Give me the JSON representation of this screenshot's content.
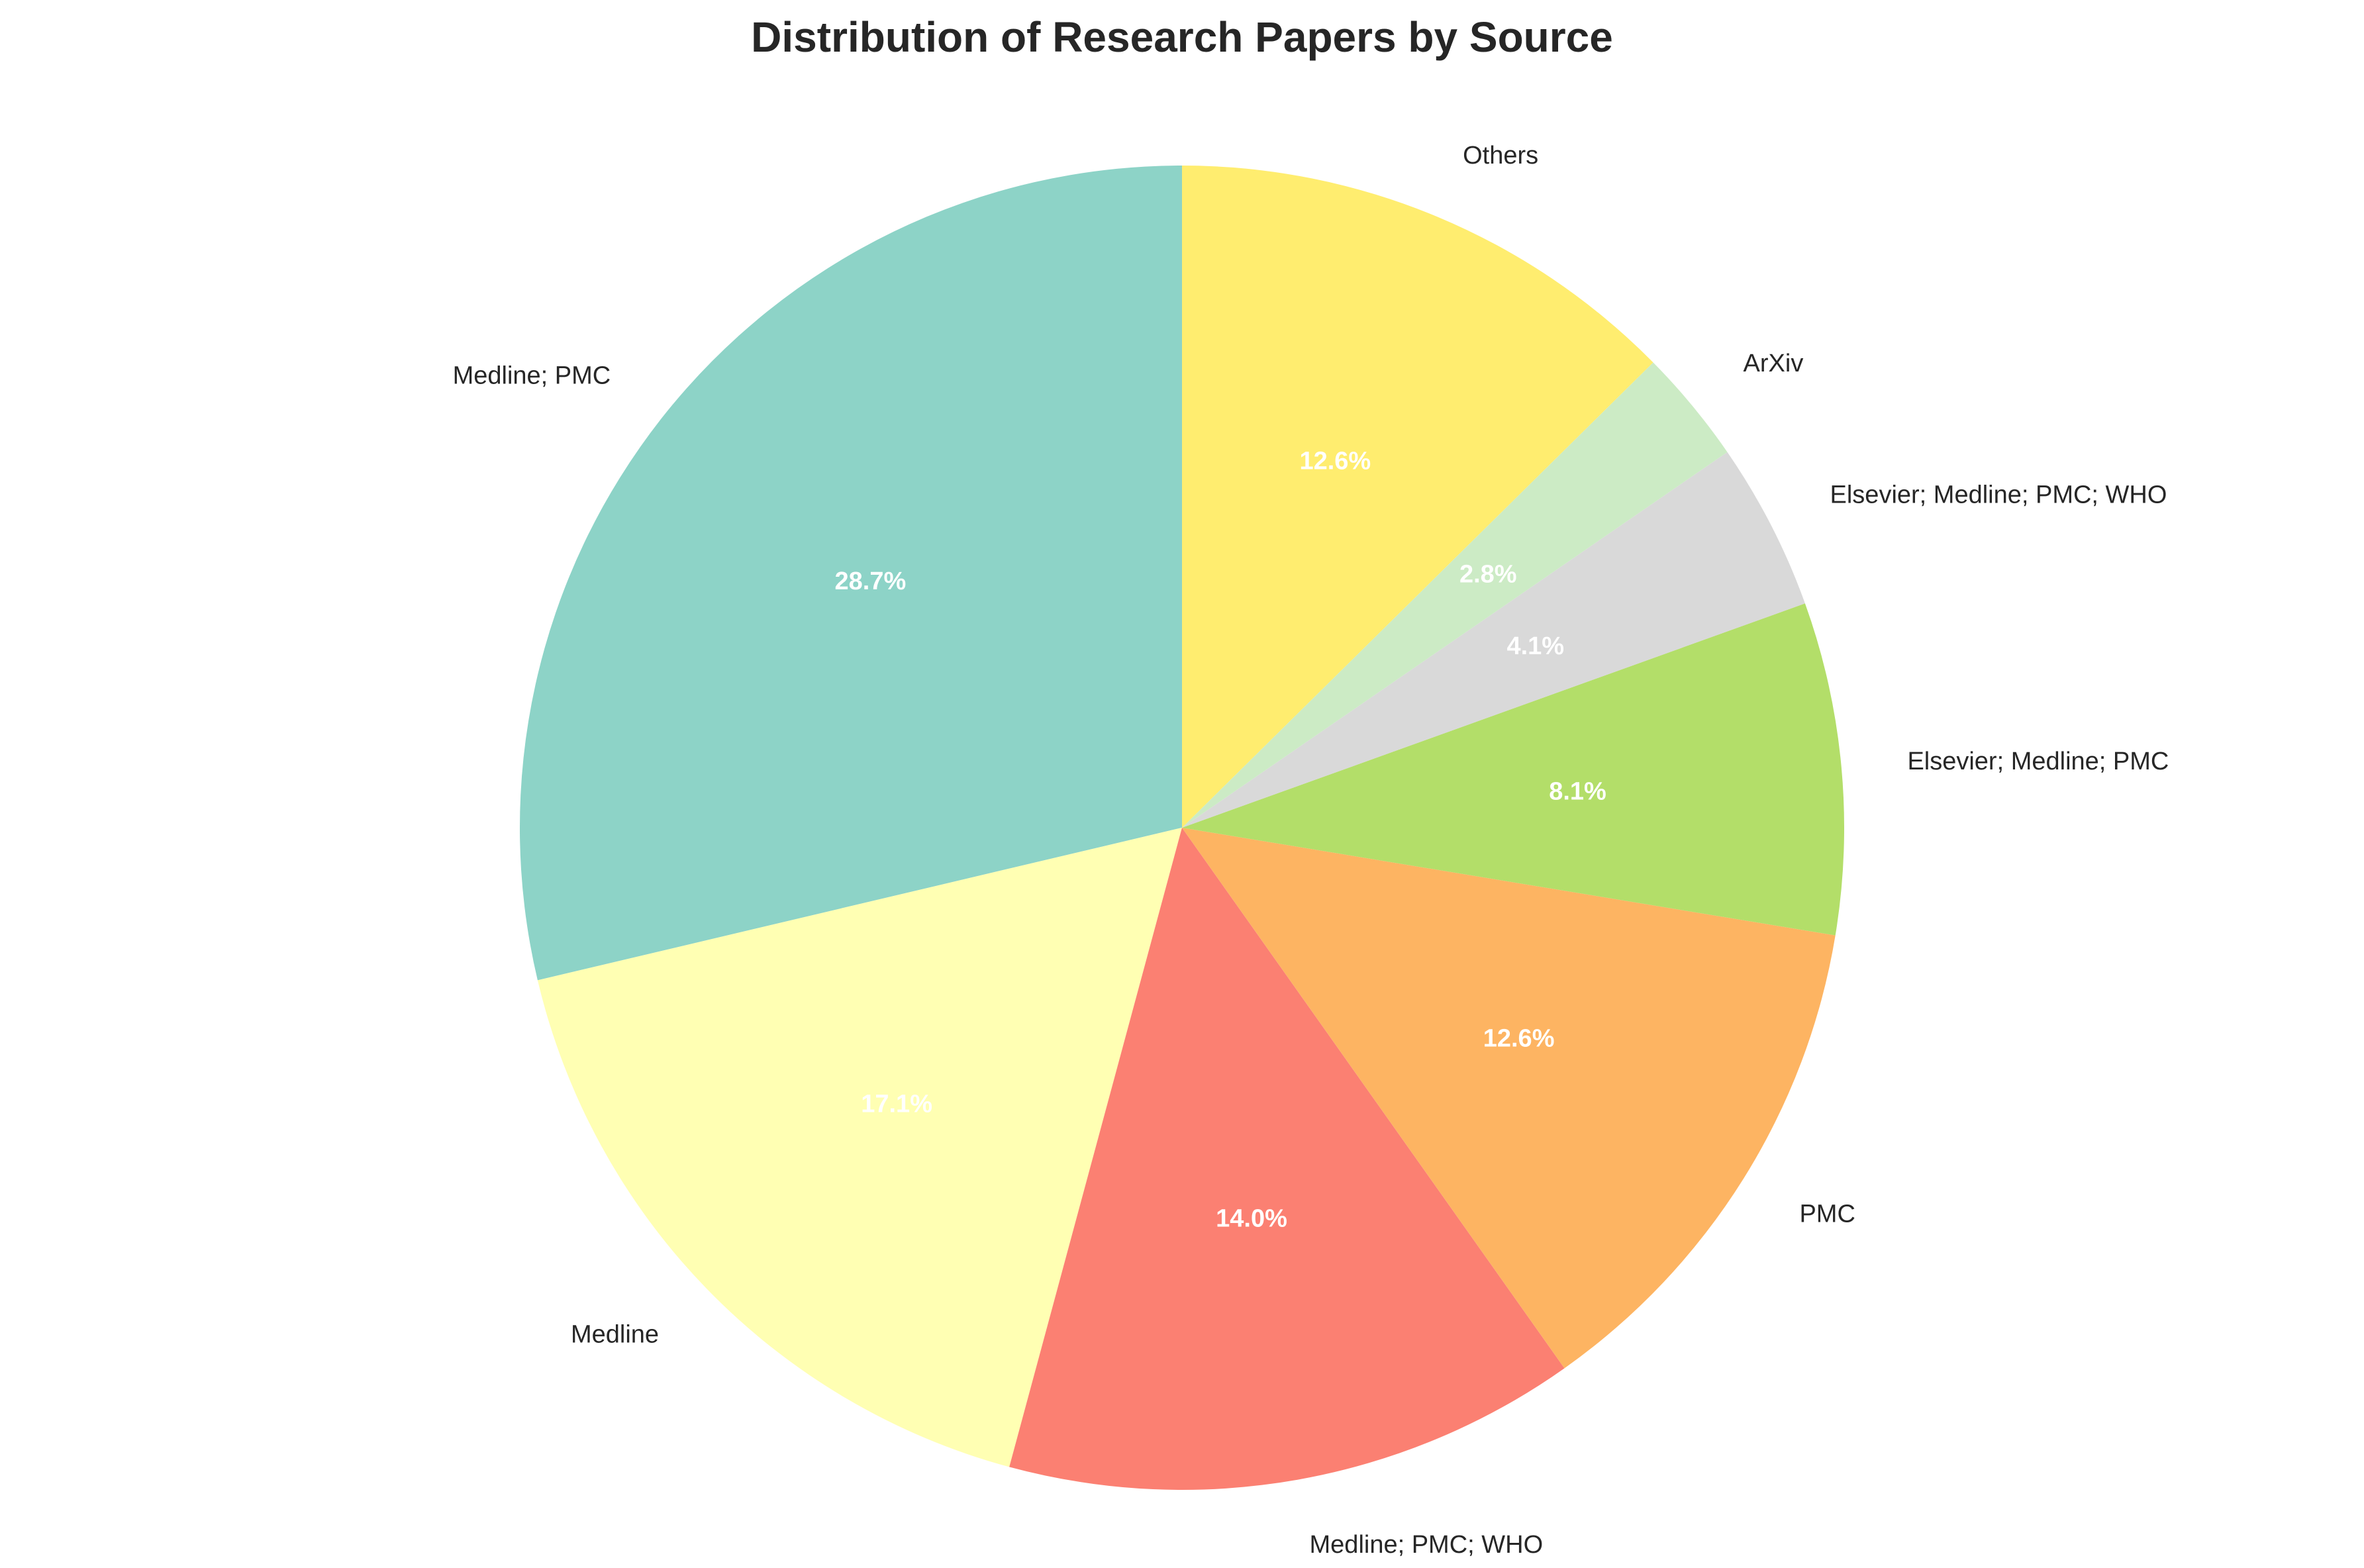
{
  "chart_data": {
    "type": "pie",
    "title": "Distribution of Research Papers by Source",
    "start_angle_deg": 90,
    "direction": "counterclockwise",
    "slices": [
      {
        "label": "Medline; PMC",
        "value": 28.7,
        "pct_label": "28.7%",
        "color": "#8dd3c7"
      },
      {
        "label": "Medline",
        "value": 17.1,
        "pct_label": "17.1%",
        "color": "#ffffb3"
      },
      {
        "label": "Medline; PMC; WHO",
        "value": 14.0,
        "pct_label": "14.0%",
        "color": "#fb8072"
      },
      {
        "label": "PMC",
        "value": 12.6,
        "pct_label": "12.6%",
        "color": "#fdb462"
      },
      {
        "label": "Elsevier; Medline; PMC",
        "value": 8.1,
        "pct_label": "8.1%",
        "color": "#b3de69"
      },
      {
        "label": "Elsevier; Medline; PMC; WHO",
        "value": 4.1,
        "pct_label": "4.1%",
        "color": "#d9d9d9"
      },
      {
        "label": "ArXiv",
        "value": 2.8,
        "pct_label": "2.8%",
        "color": "#ccebc5"
      },
      {
        "label": "Others",
        "value": 12.6,
        "pct_label": "12.6%",
        "color": "#ffed6f"
      }
    ]
  }
}
